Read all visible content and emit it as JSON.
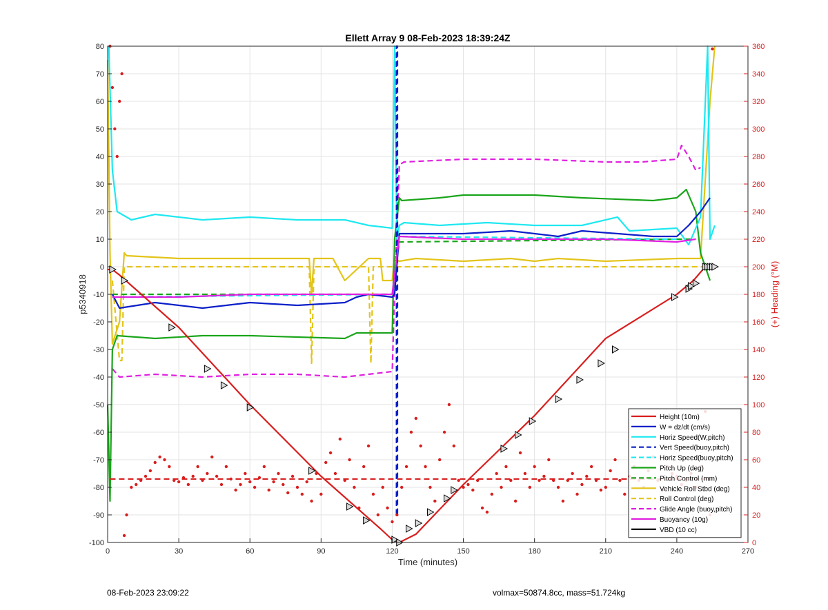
{
  "footer": {
    "left": "08-Feb-2023 23:09:22",
    "right": "volmax=50874.8cc, mass=51.724kg"
  },
  "chart_data": {
    "type": "line",
    "title": "Ellett Array 9 08-Feb-2023 18:39:24Z",
    "xlabel": "Time (minutes)",
    "ylabel": "p5340918",
    "ylabel_right": "(+) Heading (°M)",
    "xlim": [
      0,
      270
    ],
    "ylim": [
      -100,
      80
    ],
    "ylim_right": [
      0,
      360
    ],
    "xticks": [
      0,
      30,
      60,
      90,
      120,
      150,
      180,
      210,
      240,
      270
    ],
    "yticks": [
      -100,
      -90,
      -80,
      -70,
      -60,
      -50,
      -40,
      -30,
      -20,
      -10,
      0,
      10,
      20,
      30,
      40,
      50,
      60,
      70,
      80
    ],
    "yticks_right": [
      0,
      20,
      40,
      60,
      80,
      100,
      120,
      140,
      160,
      180,
      200,
      220,
      240,
      260,
      280,
      300,
      320,
      340,
      360
    ],
    "grid": true,
    "legend_position": "bottom-right",
    "colors": {
      "red": "#d81e1e",
      "blue": "#0a1fc8",
      "cyan": "#1ee8f0",
      "green": "#1aa51a",
      "yellow": "#e3c41a",
      "magenta": "#e11ee1",
      "black": "#000000",
      "right_axis": "#d81e1e"
    },
    "series": [
      {
        "name": "Height (10m)",
        "color": "#d81e1e",
        "style": "solid",
        "x": [
          0,
          2,
          5,
          30,
          60,
          90,
          115,
          120,
          123,
          130,
          150,
          180,
          210,
          240,
          247,
          252,
          256
        ],
        "y": [
          -1,
          -1,
          -3,
          -22,
          -50,
          -76,
          -95,
          -99,
          -100,
          -97,
          -79,
          -54,
          -26,
          -10,
          -5,
          0,
          0
        ]
      },
      {
        "name": "W = dz/dt (cm/s)",
        "color": "#0a1fc8",
        "style": "solid",
        "x": [
          2,
          5,
          20,
          40,
          60,
          80,
          100,
          105,
          110,
          120,
          121,
          123,
          125,
          150,
          170,
          190,
          200,
          230,
          240,
          245,
          250,
          254
        ],
        "y": [
          -10,
          -15,
          -13,
          -15,
          -13,
          -14,
          -13,
          -11,
          -10,
          -11,
          -10,
          12,
          12,
          12,
          13,
          11,
          13,
          11,
          11,
          15,
          20,
          25
        ]
      },
      {
        "name": "Horiz Speed(W,pitch)",
        "color": "#1ee8f0",
        "style": "solid",
        "x": [
          0.5,
          2,
          4,
          10,
          20,
          40,
          60,
          80,
          100,
          110,
          120,
          121,
          122,
          123,
          125,
          140,
          160,
          180,
          200,
          215,
          220,
          240,
          245,
          250,
          253,
          254,
          256
        ],
        "y": [
          80,
          35,
          20,
          17,
          19,
          17,
          18,
          17,
          17,
          15,
          14,
          80,
          10,
          15,
          16,
          15,
          16,
          15,
          15,
          18,
          13,
          14,
          8,
          18,
          80,
          10,
          15
        ]
      },
      {
        "name": "Vert Speed(buoy,pitch)",
        "color": "#0a1fc8",
        "style": "dashed",
        "x": [
          121.8,
          121.8,
          122.2,
          122.2
        ],
        "y": [
          -90,
          80,
          80,
          -90
        ]
      },
      {
        "name": "Horiz Speed(buoy,pitch)",
        "color": "#1ee8f0",
        "style": "dashed",
        "x": [
          2,
          120,
          123,
          240
        ],
        "y": [
          -11,
          -10,
          11,
          10
        ]
      },
      {
        "name": "Pitch Up (deg)",
        "color": "#1aa51a",
        "style": "solid",
        "x": [
          0,
          1,
          2,
          4,
          20,
          40,
          60,
          100,
          105,
          115,
          120,
          121,
          123,
          124,
          140,
          150,
          180,
          200,
          230,
          240,
          244,
          248,
          250,
          254
        ],
        "y": [
          -50,
          -85,
          -30,
          -25,
          -26,
          -25,
          -25,
          -26,
          -24,
          -24,
          -24,
          10,
          25,
          24,
          25,
          26,
          26,
          25,
          24,
          25,
          28,
          20,
          5,
          -5
        ]
      },
      {
        "name": "Pitch Control (mm)",
        "color": "#1aa51a",
        "style": "dashed",
        "x": [
          2,
          120,
          123,
          240,
          248
        ],
        "y": [
          -10,
          -10,
          9,
          10,
          10
        ]
      },
      {
        "name": "Vehicle Roll Stbd (deg)",
        "color": "#e3c41a",
        "style": "solid",
        "x": [
          0,
          1,
          2,
          5,
          7,
          8,
          30,
          60,
          85,
          86,
          87,
          95,
          100,
          110,
          115,
          116,
          120,
          121,
          123,
          130,
          150,
          170,
          180,
          190,
          210,
          240,
          250,
          254,
          256
        ],
        "y": [
          75,
          5,
          -28,
          -20,
          5,
          4,
          3,
          3,
          3,
          -10,
          3,
          3,
          -5,
          3,
          3,
          -5,
          -5,
          3,
          2,
          3,
          2,
          3,
          2,
          3,
          2,
          3,
          3,
          60,
          80
        ]
      },
      {
        "name": "Roll Control (deg)",
        "color": "#e3c41a",
        "style": "dashed",
        "x": [
          2,
          5,
          6,
          7,
          26,
          42,
          49,
          60,
          85,
          86,
          87,
          103,
          110,
          111,
          112,
          120,
          123,
          135,
          145,
          165,
          173,
          177,
          200,
          240,
          247,
          256
        ],
        "y": [
          -5,
          -34,
          -34,
          0,
          0,
          0,
          0,
          0,
          0,
          -35,
          0,
          0,
          0,
          -35,
          0,
          0,
          0,
          0,
          0,
          0,
          0,
          0,
          0,
          0,
          0,
          0
        ]
      },
      {
        "name": "Glide Angle (buoy,pitch)",
        "color": "#e11ee1",
        "style": "dashed",
        "x": [
          2,
          5,
          20,
          40,
          60,
          80,
          100,
          110,
          120,
          121,
          123,
          125,
          150,
          180,
          210,
          225,
          240,
          242,
          245,
          248,
          250
        ],
        "y": [
          -37,
          -40,
          -39,
          -40,
          -39,
          -39,
          -40,
          -39,
          -38,
          -10,
          37,
          38,
          39,
          39,
          38,
          38,
          39,
          44,
          40,
          35,
          36
        ]
      },
      {
        "name": "Buoyancy (10g)",
        "color": "#e11ee1",
        "style": "solid",
        "x": [
          2,
          30,
          60,
          90,
          120,
          123,
          150,
          180,
          210,
          240,
          248
        ],
        "y": [
          -11,
          -11,
          -10,
          -10,
          -10,
          11,
          10,
          10,
          10,
          9,
          10
        ]
      },
      {
        "name": "VBD (10 cc)",
        "color": "#000000",
        "style": "solid",
        "x": [
          0.5,
          1,
          2,
          3,
          4,
          60,
          121,
          123,
          150,
          200,
          245,
          246,
          250,
          251,
          254,
          255,
          256
        ],
        "y": [
          47,
          30,
          0,
          -9,
          -10,
          -10,
          -10,
          10,
          10,
          10,
          10,
          15,
          15,
          25,
          25,
          37,
          52
        ]
      }
    ],
    "heading": {
      "name": "(+) Heading (°M)",
      "color": "#d81e1e",
      "axis": "right",
      "style": "dots",
      "mean": 46,
      "x": [
        1,
        2,
        3,
        4,
        5,
        6,
        7,
        8,
        10,
        12,
        14,
        16,
        18,
        20,
        22,
        24,
        26,
        28,
        30,
        32,
        34,
        36,
        38,
        40,
        42,
        44,
        46,
        48,
        50,
        52,
        54,
        56,
        58,
        60,
        62,
        64,
        66,
        68,
        70,
        72,
        74,
        76,
        78,
        80,
        82,
        84,
        86,
        88,
        90,
        92,
        94,
        96,
        98,
        100,
        102,
        104,
        106,
        108,
        110,
        112,
        114,
        116,
        118,
        120,
        122,
        124,
        126,
        128,
        130,
        132,
        134,
        136,
        138,
        140,
        142,
        144,
        146,
        148,
        150,
        152,
        154,
        156,
        158,
        160,
        162,
        164,
        166,
        168,
        170,
        172,
        174,
        176,
        178,
        180,
        182,
        184,
        186,
        188,
        190,
        192,
        194,
        196,
        198,
        200,
        202,
        204,
        206,
        208,
        210,
        212,
        214,
        216,
        218,
        220,
        222,
        224,
        226,
        228,
        230,
        232,
        234,
        236,
        238,
        240,
        242,
        244,
        246,
        248,
        250,
        252,
        254,
        255
      ],
      "y": [
        360,
        330,
        300,
        280,
        320,
        340,
        5,
        20,
        40,
        42,
        45,
        48,
        52,
        58,
        62,
        60,
        55,
        45,
        44,
        47,
        42,
        48,
        55,
        45,
        50,
        62,
        48,
        42,
        55,
        46,
        38,
        42,
        50,
        44,
        40,
        47,
        55,
        38,
        44,
        50,
        42,
        36,
        48,
        40,
        35,
        44,
        30,
        50,
        35,
        58,
        65,
        50,
        75,
        45,
        60,
        40,
        25,
        55,
        70,
        35,
        20,
        40,
        25,
        15,
        20,
        40,
        55,
        80,
        90,
        70,
        55,
        40,
        30,
        60,
        80,
        100,
        70,
        45,
        40,
        42,
        38,
        45,
        25,
        22,
        35,
        50,
        40,
        55,
        45,
        30,
        65,
        50,
        40,
        55,
        45,
        48,
        60,
        45,
        40,
        30,
        45,
        50,
        35,
        42,
        48,
        55,
        45,
        38,
        40,
        52,
        60,
        45,
        35,
        48,
        55,
        45,
        40,
        52,
        62,
        45,
        38,
        55,
        50,
        48,
        42,
        45,
        50,
        40,
        55,
        95,
        20,
        358
      ]
    },
    "markers": {
      "style": "open-triangles",
      "x": [
        2,
        7,
        27,
        42,
        49,
        60,
        86,
        102,
        109,
        121,
        123,
        127,
        131,
        136,
        143,
        146,
        167,
        173,
        179,
        190,
        199,
        208,
        214,
        239,
        245,
        246,
        248,
        252,
        253,
        254,
        255,
        256
      ],
      "y": [
        -1,
        -5,
        -22,
        -37,
        -43,
        -51,
        -74,
        -87,
        -92,
        -99,
        -100,
        -95,
        -93,
        -89,
        -84,
        -81,
        -66,
        -61,
        -56,
        -48,
        -41,
        -35,
        -30,
        -11,
        -8,
        -7,
        -6,
        0,
        0,
        0,
        0,
        0
      ]
    }
  }
}
